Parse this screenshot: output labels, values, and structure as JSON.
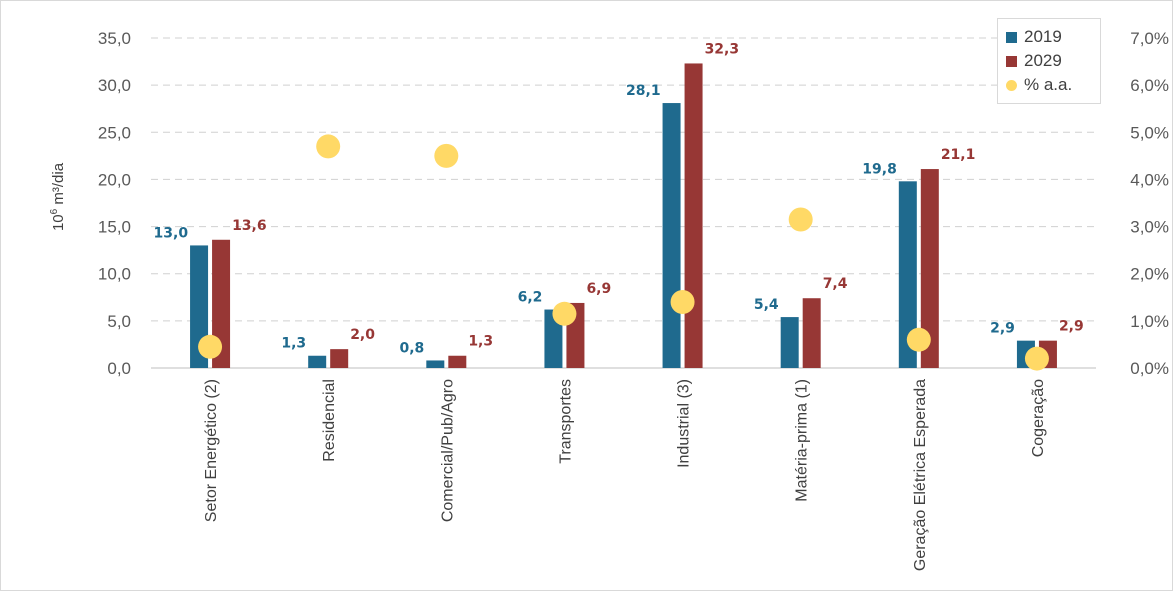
{
  "chart_data": {
    "type": "bar",
    "categories": [
      "Setor Energético (2)",
      "Residencial",
      "Comercial/Pub/Agro",
      "Transportes",
      "Industrial (3)",
      "Matéria-prima (1)",
      "Geração Elétrica Esperada",
      "Cogeração"
    ],
    "series": [
      {
        "name": "2019",
        "type": "bar",
        "axis": "left",
        "color": "#1f6a8e",
        "values": [
          13.0,
          1.3,
          0.8,
          6.2,
          28.1,
          5.4,
          19.8,
          2.9
        ],
        "labels": [
          "13,0",
          "1,3",
          "0,8",
          "6,2",
          "28,1",
          "5,4",
          "19,8",
          "2,9"
        ]
      },
      {
        "name": "2029",
        "type": "bar",
        "axis": "right-of-pair",
        "color": "#973735",
        "values": [
          13.6,
          2.0,
          1.3,
          6.9,
          32.3,
          7.4,
          21.1,
          2.9
        ],
        "labels": [
          "13,6",
          "2,0",
          "1,3",
          "6,9",
          "32,3",
          "7,4",
          "21,1",
          "2,9"
        ]
      },
      {
        "name": "% a.a.",
        "type": "scatter",
        "axis": "secondary",
        "color": "#ffd966",
        "values": [
          0.45,
          4.7,
          4.5,
          1.15,
          1.4,
          3.15,
          0.6,
          0.2
        ]
      }
    ],
    "ylabel_base": "10",
    "ylabel_sup": "6",
    "ylabel_rest": " m³/dia",
    "ylim": [
      0,
      35
    ],
    "y_ticks": [
      "0,0",
      "5,0",
      "10,0",
      "15,0",
      "20,0",
      "25,0",
      "30,0",
      "35,0"
    ],
    "y2lim": [
      0,
      7
    ],
    "y2_ticks": [
      "0,0%",
      "1,0%",
      "2,0%",
      "3,0%",
      "4,0%",
      "5,0%",
      "6,0%",
      "7,0%"
    ],
    "grid": true,
    "legend": "top-right",
    "colors": {
      "grid": "#d0d0d0",
      "label_2019": "#1f6a8e",
      "label_2029": "#973735"
    }
  }
}
